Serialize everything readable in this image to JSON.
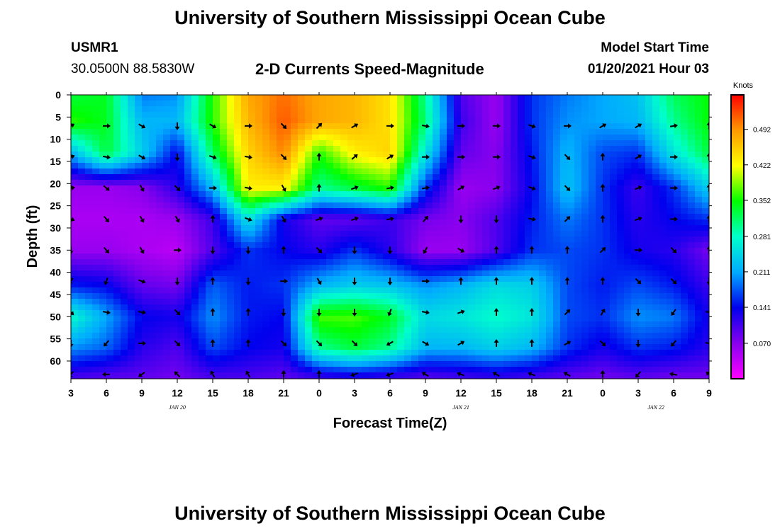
{
  "header": {
    "title": "University of Southern Mississippi Ocean Cube",
    "station": "USMR1",
    "coords": "30.0500N 88.5830W",
    "subtitle": "2-D Currents Speed-Magnitude",
    "model_start_label": "Model Start Time",
    "model_start_value": "01/20/2021 Hour 03"
  },
  "footer": {
    "title": "University of Southern Mississippi Ocean Cube"
  },
  "chart_data": {
    "type": "heatmap",
    "title": "2-D Currents Speed-Magnitude",
    "xlabel": "Forecast Time(Z)",
    "ylabel": "Depth (ft)",
    "x_tick_labels": [
      "3",
      "6",
      "9",
      "12",
      "15",
      "18",
      "21",
      "0",
      "3",
      "6",
      "9",
      "12",
      "15",
      "18",
      "21",
      "0",
      "3",
      "6",
      "9"
    ],
    "date_labels": [
      {
        "label": "JAN 20",
        "at_tick": 3
      },
      {
        "label": "JAN 21",
        "at_tick": 11
      },
      {
        "label": "JAN 22",
        "at_tick": 16.5
      }
    ],
    "y_tick_labels": [
      "0",
      "5",
      "10",
      "15",
      "20",
      "25",
      "30",
      "35",
      "40",
      "45",
      "50",
      "55",
      "60"
    ],
    "ylim": [
      0,
      64
    ],
    "y_reversed": true,
    "x_sample_count": 19,
    "depths": [
      0,
      6,
      13,
      21,
      28,
      35,
      43,
      50,
      57,
      64
    ],
    "speed_knots": [
      [
        0.33,
        0.34,
        0.19,
        0.2,
        0.36,
        0.48,
        0.51,
        0.48,
        0.47,
        0.44,
        0.3,
        0.1,
        0.06,
        0.16,
        0.19,
        0.21,
        0.23,
        0.32,
        0.35
      ],
      [
        0.36,
        0.34,
        0.22,
        0.22,
        0.36,
        0.47,
        0.52,
        0.48,
        0.47,
        0.44,
        0.31,
        0.11,
        0.06,
        0.16,
        0.2,
        0.21,
        0.22,
        0.3,
        0.35
      ],
      [
        0.22,
        0.33,
        0.24,
        0.14,
        0.32,
        0.45,
        0.5,
        0.36,
        0.43,
        0.45,
        0.26,
        0.09,
        0.07,
        0.15,
        0.22,
        0.17,
        0.16,
        0.26,
        0.33
      ],
      [
        0.06,
        0.06,
        0.07,
        0.12,
        0.22,
        0.43,
        0.43,
        0.3,
        0.33,
        0.36,
        0.16,
        0.06,
        0.07,
        0.14,
        0.23,
        0.16,
        0.11,
        0.16,
        0.24
      ],
      [
        0.05,
        0.05,
        0.05,
        0.06,
        0.11,
        0.26,
        0.13,
        0.09,
        0.09,
        0.11,
        0.08,
        0.07,
        0.1,
        0.15,
        0.19,
        0.16,
        0.12,
        0.14,
        0.16
      ],
      [
        0.06,
        0.06,
        0.05,
        0.04,
        0.1,
        0.16,
        0.14,
        0.12,
        0.16,
        0.12,
        0.06,
        0.06,
        0.1,
        0.16,
        0.17,
        0.16,
        0.13,
        0.12,
        0.08
      ],
      [
        0.15,
        0.14,
        0.09,
        0.08,
        0.18,
        0.15,
        0.16,
        0.22,
        0.24,
        0.23,
        0.2,
        0.22,
        0.25,
        0.24,
        0.17,
        0.15,
        0.17,
        0.15,
        0.11
      ],
      [
        0.28,
        0.21,
        0.14,
        0.13,
        0.2,
        0.15,
        0.14,
        0.37,
        0.37,
        0.34,
        0.25,
        0.26,
        0.28,
        0.26,
        0.17,
        0.16,
        0.2,
        0.19,
        0.13
      ],
      [
        0.2,
        0.18,
        0.12,
        0.1,
        0.17,
        0.14,
        0.13,
        0.3,
        0.33,
        0.3,
        0.22,
        0.22,
        0.24,
        0.22,
        0.16,
        0.13,
        0.16,
        0.15,
        0.12
      ],
      [
        0.1,
        0.09,
        0.09,
        0.08,
        0.1,
        0.1,
        0.09,
        0.1,
        0.11,
        0.1,
        0.09,
        0.1,
        0.11,
        0.1,
        0.09,
        0.08,
        0.09,
        0.08,
        0.08
      ]
    ],
    "arrow_rows": [
      {
        "depth": 7,
        "angles": [
          60,
          90,
          120,
          180,
          120,
          90,
          135,
          45,
          60,
          90,
          100,
          90,
          90,
          110,
          90,
          60,
          60,
          80,
          0
        ]
      },
      {
        "depth": 14,
        "angles": [
          70,
          100,
          120,
          180,
          110,
          100,
          135,
          0,
          50,
          60,
          90,
          90,
          90,
          110,
          135,
          0,
          60,
          90,
          0
        ]
      },
      {
        "depth": 21,
        "angles": [
          80,
          130,
          150,
          135,
          90,
          100,
          150,
          0,
          70,
          80,
          80,
          60,
          70,
          110,
          135,
          0,
          70,
          90,
          0
        ]
      },
      {
        "depth": 28,
        "angles": [
          110,
          140,
          150,
          150,
          0,
          110,
          150,
          70,
          70,
          80,
          40,
          180,
          180,
          100,
          45,
          0,
          70,
          90,
          0
        ]
      },
      {
        "depth": 35,
        "angles": [
          180,
          140,
          150,
          90,
          180,
          180,
          0,
          135,
          180,
          180,
          210,
          120,
          0,
          0,
          0,
          45,
          90,
          135,
          0
        ]
      },
      {
        "depth": 42,
        "angles": [
          210,
          200,
          110,
          180,
          0,
          180,
          90,
          150,
          180,
          180,
          90,
          0,
          0,
          0,
          0,
          0,
          135,
          135,
          180
        ]
      },
      {
        "depth": 49,
        "angles": [
          135,
          100,
          100,
          135,
          0,
          0,
          180,
          180,
          180,
          200,
          100,
          70,
          0,
          0,
          45,
          30,
          180,
          215,
          100
        ]
      },
      {
        "depth": 56,
        "angles": [
          180,
          220,
          90,
          135,
          0,
          0,
          135,
          135,
          135,
          240,
          120,
          60,
          0,
          0,
          60,
          135,
          180,
          220,
          100
        ]
      },
      {
        "depth": 63,
        "angles": [
          220,
          270,
          235,
          315,
          330,
          330,
          0,
          0,
          250,
          250,
          300,
          290,
          300,
          290,
          300,
          0,
          220,
          280,
          310
        ]
      }
    ],
    "colorbar": {
      "unit": "Knots",
      "tick_labels": [
        "0.492",
        "0.422",
        "0.352",
        "0.281",
        "0.211",
        "0.141",
        "0.070"
      ],
      "tick_values": [
        0.492,
        0.422,
        0.352,
        0.281,
        0.211,
        0.141,
        0.07
      ],
      "range": [
        0.0,
        0.56
      ],
      "colors": [
        "#ff00ff",
        "#8800ee",
        "#0000ee",
        "#00aaff",
        "#00ffcc",
        "#00ff00",
        "#ffff00",
        "#ff9900",
        "#ff0000"
      ]
    }
  }
}
